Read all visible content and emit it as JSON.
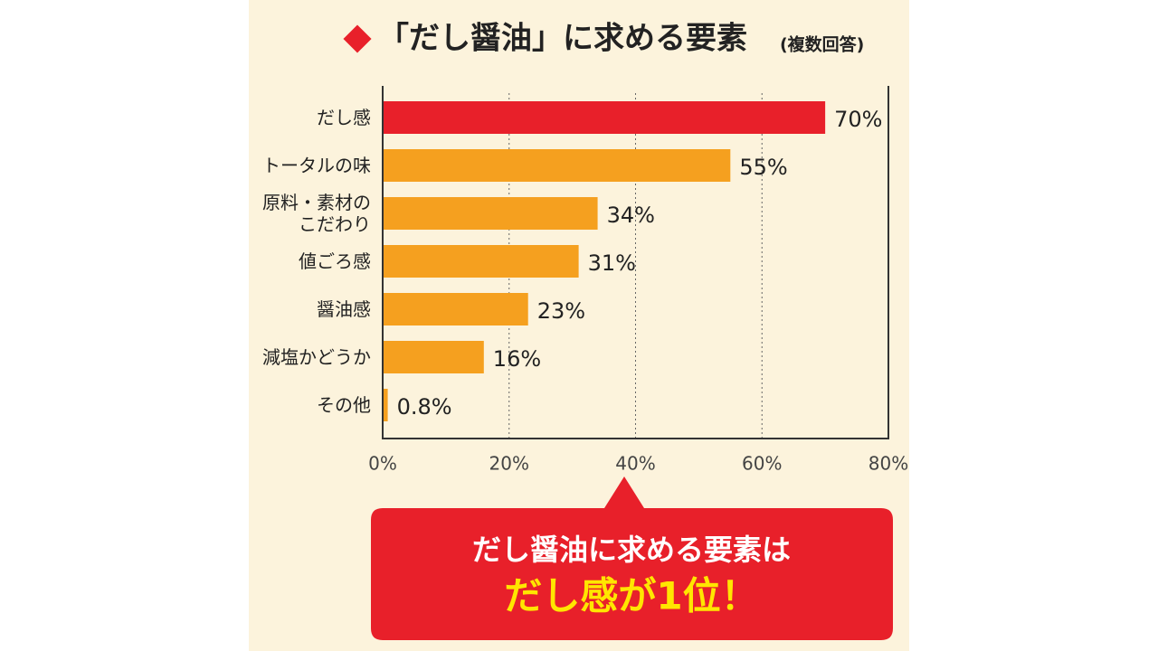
{
  "chart_data": {
    "type": "bar",
    "orientation": "horizontal",
    "title": "「だし醤油」に求める要素",
    "subtitle": "(複数回答)",
    "categories": [
      "だし感",
      "トータルの味",
      "原料・素材の\nこだわり",
      "値ごろ感",
      "醤油感",
      "減塩かどうか",
      "その他"
    ],
    "values": [
      70,
      55,
      34,
      31,
      23,
      16,
      0.8
    ],
    "value_labels": [
      "70%",
      "55%",
      "34%",
      "31%",
      "23%",
      "16%",
      "0.8%"
    ],
    "colors": [
      "#e8202a",
      "#f5a01f",
      "#f5a01f",
      "#f5a01f",
      "#f5a01f",
      "#f5a01f",
      "#f5a01f"
    ],
    "xlim": [
      0,
      80
    ],
    "xticks": [
      {
        "value": 0,
        "label": "0%"
      },
      {
        "value": 20,
        "label": "20%"
      },
      {
        "value": 40,
        "label": "40%"
      },
      {
        "value": 60,
        "label": "60%"
      },
      {
        "value": 80,
        "label": "80%"
      }
    ],
    "grid": true,
    "callout": {
      "line1": "だし醤油に求める要素は",
      "line2": "だし感が1位！"
    }
  }
}
